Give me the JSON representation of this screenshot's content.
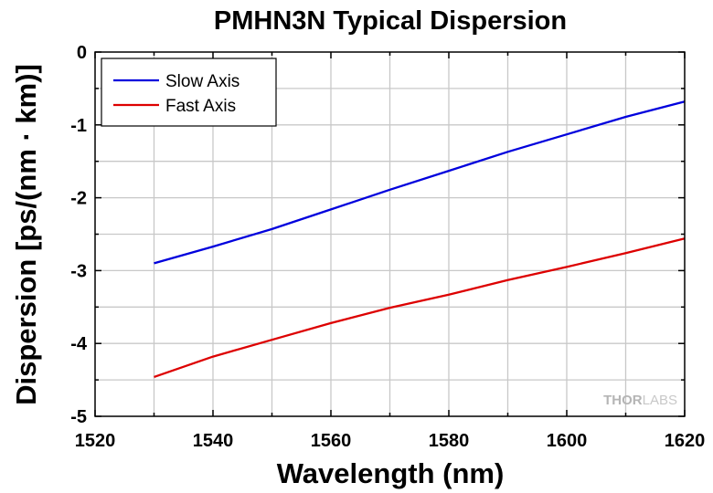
{
  "chart_data": {
    "type": "line",
    "title": "PMHN3N Typical Dispersion",
    "xlabel": "Wavelength (nm)",
    "ylabel": "Dispersion [ps/(nm · km)]",
    "xlim": [
      1520,
      1620
    ],
    "ylim": [
      -5,
      0
    ],
    "xticks": [
      "1520",
      "1540",
      "1560",
      "1580",
      "1600",
      "1620"
    ],
    "yticks": [
      "0",
      "-1",
      "-2",
      "-3",
      "-4",
      "-5"
    ],
    "grid": true,
    "legend_position": "top-left",
    "series": [
      {
        "name": "Slow Axis",
        "color": "#0000dd",
        "x": [
          1530,
          1540,
          1550,
          1560,
          1570,
          1580,
          1590,
          1600,
          1610,
          1620
        ],
        "y": [
          -2.9,
          -2.67,
          -2.43,
          -2.16,
          -1.89,
          -1.63,
          -1.37,
          -1.13,
          -0.89,
          -0.68
        ]
      },
      {
        "name": "Fast Axis",
        "color": "#dd0000",
        "x": [
          1530,
          1540,
          1550,
          1560,
          1570,
          1580,
          1590,
          1600,
          1610,
          1620
        ],
        "y": [
          -4.46,
          -4.18,
          -3.95,
          -3.72,
          -3.51,
          -3.33,
          -3.13,
          -2.95,
          -2.76,
          -2.56
        ]
      }
    ]
  },
  "watermark": {
    "part1": "THOR",
    "part2": "LABS"
  }
}
